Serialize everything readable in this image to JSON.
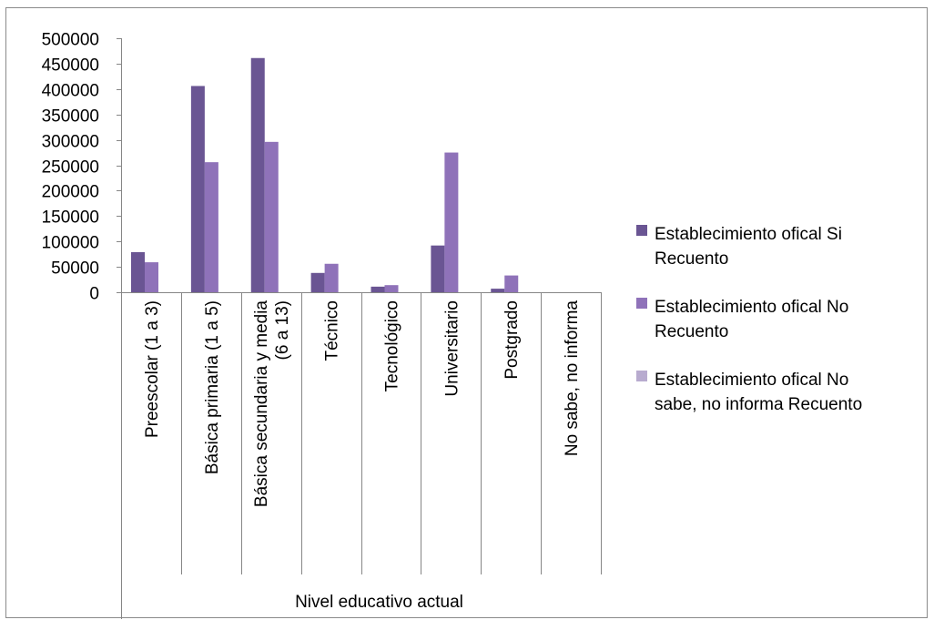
{
  "chart_data": {
    "type": "bar",
    "title": "",
    "xlabel": "Nivel educativo actual",
    "ylabel": "",
    "ylim": [
      0,
      500000
    ],
    "yticks": [
      "0",
      "50000",
      "100000",
      "150000",
      "200000",
      "250000",
      "300000",
      "350000",
      "400000",
      "450000",
      "500000"
    ],
    "categories": [
      [
        "Preescolar (1 a 3)"
      ],
      [
        "Básica primaria (1 a 5)"
      ],
      [
        "Básica secundaria  y media",
        "(6 a 13)"
      ],
      [
        "Técnico"
      ],
      [
        "Tecnológico"
      ],
      [
        "Universitario"
      ],
      [
        "Postgrado"
      ],
      [
        "No sabe, no informa"
      ]
    ],
    "series": [
      {
        "name": [
          "Establecimiento ofical  Si",
          "Recuento"
        ],
        "color": "#6a5593",
        "values": [
          79000,
          406000,
          461000,
          38000,
          11000,
          92000,
          7000,
          0
        ]
      },
      {
        "name": [
          "Establecimiento ofical  No",
          "Recuento"
        ],
        "color": "#8f72b9",
        "values": [
          59000,
          256000,
          296000,
          56000,
          14000,
          275000,
          33000,
          0
        ]
      },
      {
        "name": [
          "Establecimiento ofical  No",
          "sabe, no informa Recuento"
        ],
        "color": "#b8abcf",
        "values": [
          0,
          0,
          0,
          0,
          0,
          0,
          0,
          0
        ]
      }
    ],
    "grid": false,
    "legend_position": "right"
  }
}
